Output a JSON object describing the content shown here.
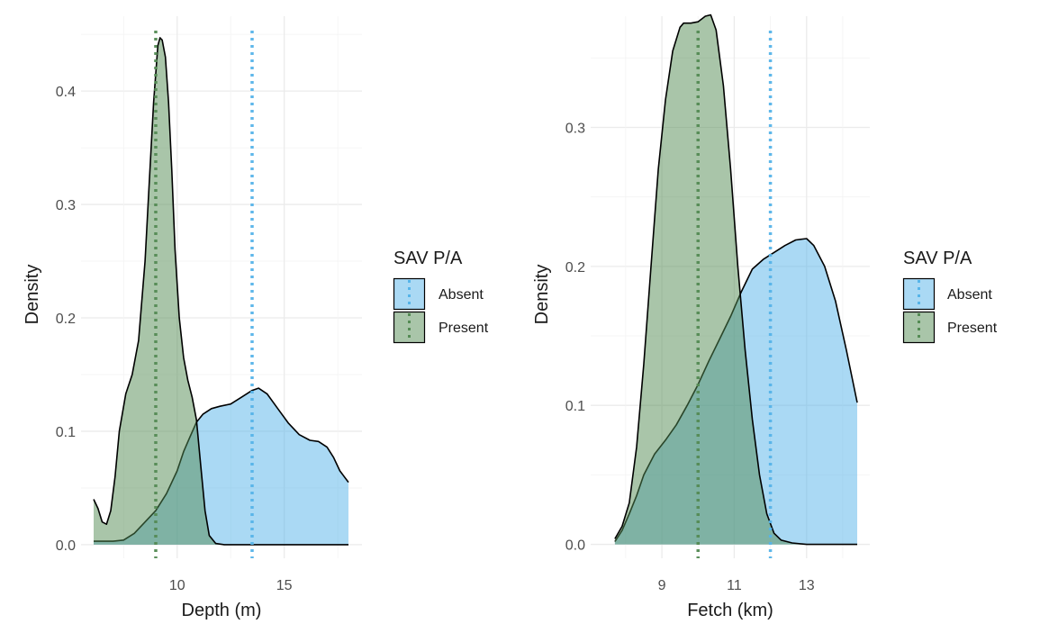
{
  "chart_data": [
    {
      "type": "area",
      "xlabel": "Depth (m)",
      "ylabel": "Density",
      "xlim": [
        6.1,
        18.0
      ],
      "ylim": [
        -0.012,
        0.466
      ],
      "xticks": [
        10,
        15
      ],
      "yticks": [
        0.0,
        0.1,
        0.2,
        0.3,
        0.4
      ],
      "ytick_labels": [
        "0.0",
        "0.1",
        "0.2",
        "0.3",
        "0.4"
      ],
      "grid": true,
      "legend": {
        "title": "SAV P/A",
        "position": "right"
      },
      "series": [
        {
          "name": "Absent",
          "color": "#56b4e9",
          "mean_line": 13.5,
          "x": [
            6.1,
            7.0,
            7.5,
            8.0,
            8.5,
            9.0,
            9.5,
            10.0,
            10.3,
            10.6,
            10.9,
            11.2,
            11.6,
            12.0,
            12.5,
            13.0,
            13.5,
            13.8,
            14.2,
            14.7,
            15.2,
            15.7,
            16.2,
            16.6,
            17.0,
            17.3,
            17.6,
            18.0
          ],
          "y": [
            0.003,
            0.003,
            0.004,
            0.01,
            0.02,
            0.03,
            0.045,
            0.065,
            0.082,
            0.095,
            0.108,
            0.115,
            0.12,
            0.122,
            0.124,
            0.13,
            0.136,
            0.138,
            0.133,
            0.12,
            0.107,
            0.097,
            0.092,
            0.091,
            0.086,
            0.077,
            0.065,
            0.055
          ]
        },
        {
          "name": "Present",
          "color": "#548b54",
          "mean_line": 9.0,
          "x": [
            6.1,
            6.3,
            6.5,
            6.7,
            6.9,
            7.1,
            7.3,
            7.6,
            7.9,
            8.2,
            8.5,
            8.7,
            8.9,
            9.1,
            9.2,
            9.3,
            9.45,
            9.6,
            9.75,
            9.9,
            10.1,
            10.3,
            10.5,
            10.7,
            10.9,
            11.1,
            11.3,
            11.5,
            11.8,
            12.2,
            18.0
          ],
          "y": [
            0.04,
            0.032,
            0.02,
            0.018,
            0.03,
            0.06,
            0.1,
            0.133,
            0.15,
            0.18,
            0.25,
            0.32,
            0.39,
            0.44,
            0.447,
            0.445,
            0.43,
            0.39,
            0.33,
            0.26,
            0.2,
            0.165,
            0.145,
            0.13,
            0.11,
            0.07,
            0.03,
            0.008,
            0.001,
            0.0,
            0.0
          ]
        }
      ]
    },
    {
      "type": "area",
      "xlabel": "Fetch (km)",
      "ylabel": "Density",
      "xlim": [
        7.38,
        14.4
      ],
      "ylim": [
        -0.01,
        0.38
      ],
      "xticks": [
        9,
        11,
        13
      ],
      "yticks": [
        0.0,
        0.1,
        0.2,
        0.3
      ],
      "ytick_labels": [
        "0.0",
        "0.1",
        "0.2",
        "0.3"
      ],
      "grid": true,
      "legend": {
        "title": "SAV P/A",
        "position": "right"
      },
      "series": [
        {
          "name": "Absent",
          "color": "#56b4e9",
          "mean_line": 12.0,
          "x": [
            7.7,
            7.9,
            8.1,
            8.3,
            8.5,
            8.8,
            9.1,
            9.4,
            9.7,
            10.0,
            10.3,
            10.6,
            10.9,
            11.2,
            11.5,
            11.8,
            12.1,
            12.4,
            12.7,
            13.0,
            13.2,
            13.5,
            13.8,
            14.1,
            14.4
          ],
          "y": [
            0.002,
            0.01,
            0.022,
            0.035,
            0.05,
            0.065,
            0.075,
            0.086,
            0.1,
            0.115,
            0.132,
            0.148,
            0.164,
            0.182,
            0.198,
            0.205,
            0.21,
            0.215,
            0.219,
            0.22,
            0.215,
            0.2,
            0.175,
            0.14,
            0.102
          ]
        },
        {
          "name": "Present",
          "color": "#548b54",
          "mean_line": 10.0,
          "x": [
            7.7,
            7.9,
            8.1,
            8.3,
            8.5,
            8.7,
            8.9,
            9.1,
            9.3,
            9.5,
            9.6,
            9.8,
            10.0,
            10.2,
            10.35,
            10.5,
            10.7,
            10.9,
            11.1,
            11.3,
            11.5,
            11.7,
            11.9,
            12.1,
            12.3,
            12.6,
            13.0,
            14.4
          ],
          "y": [
            0.004,
            0.013,
            0.03,
            0.07,
            0.13,
            0.2,
            0.27,
            0.32,
            0.355,
            0.372,
            0.375,
            0.375,
            0.376,
            0.38,
            0.381,
            0.37,
            0.33,
            0.27,
            0.2,
            0.14,
            0.09,
            0.05,
            0.022,
            0.008,
            0.003,
            0.001,
            0.0,
            0.0
          ]
        }
      ]
    }
  ]
}
